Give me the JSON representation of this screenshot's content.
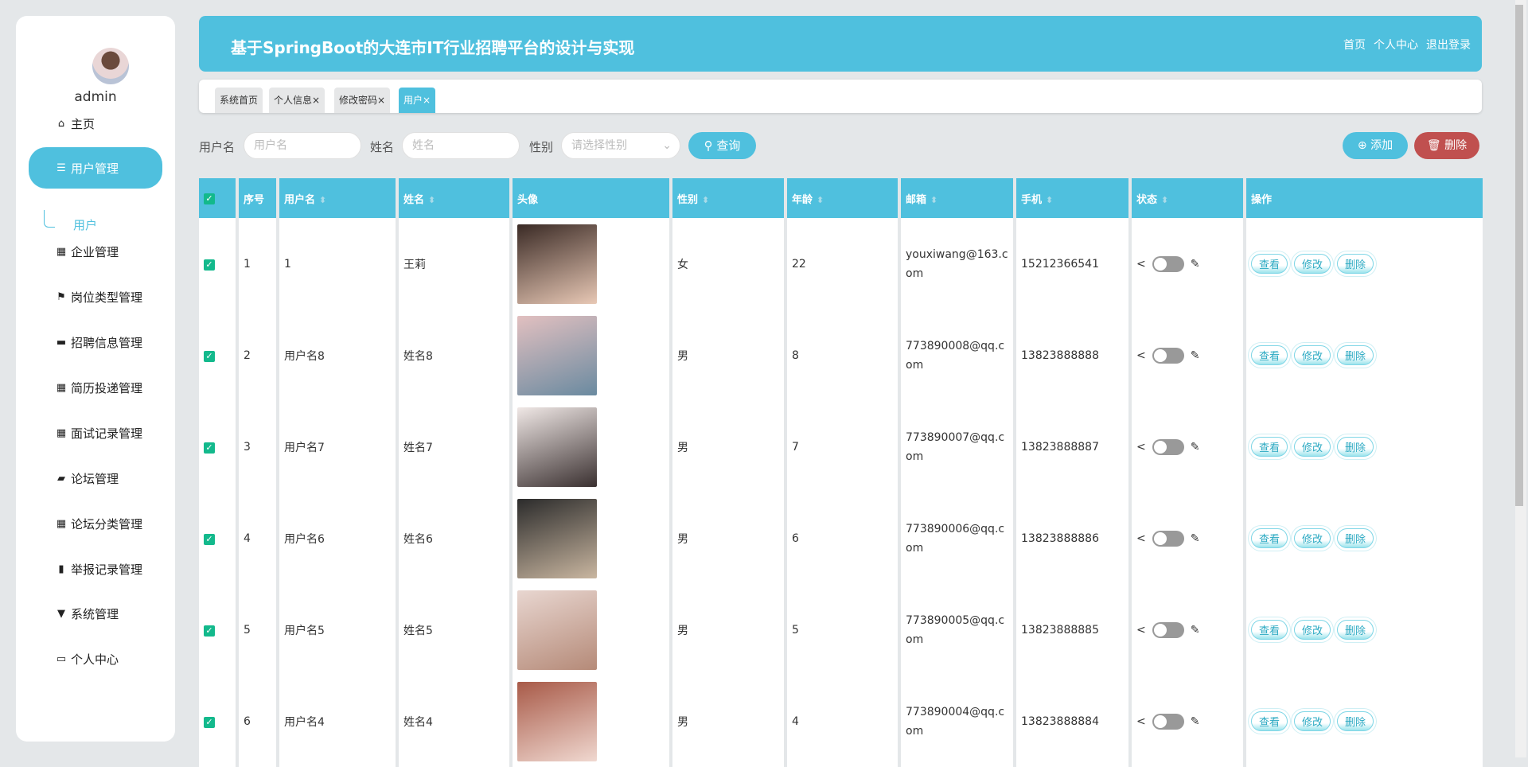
{
  "sidebar": {
    "username": "admin",
    "items": [
      {
        "label": "主页",
        "icon": "home-icon"
      },
      {
        "label": "用户管理",
        "icon": "list-icon"
      },
      {
        "label": "企业管理",
        "icon": "grid-icon"
      },
      {
        "label": "岗位类型管理",
        "icon": "flag-icon"
      },
      {
        "label": "招聘信息管理",
        "icon": "ticket-icon"
      },
      {
        "label": "简历投递管理",
        "icon": "grid-icon"
      },
      {
        "label": "面试记录管理",
        "icon": "grid-icon"
      },
      {
        "label": "论坛管理",
        "icon": "briefcase-icon"
      },
      {
        "label": "论坛分类管理",
        "icon": "grid-icon"
      },
      {
        "label": "举报记录管理",
        "icon": "book-icon"
      },
      {
        "label": "系统管理",
        "icon": "pin-icon"
      },
      {
        "label": "个人中心",
        "icon": "card-icon"
      }
    ],
    "subitem": "用户"
  },
  "header": {
    "title": "基于SpringBoot的大连市IT行业招聘平台的设计与实现",
    "links": [
      "首页",
      "个人中心",
      "退出登录"
    ]
  },
  "tabs": [
    {
      "label": "系统首页"
    },
    {
      "label": "个人信息×"
    },
    {
      "label": "修改密码×"
    },
    {
      "label": "用户×"
    }
  ],
  "search": {
    "username_label": "用户名",
    "username_placeholder": "用户名",
    "name_label": "姓名",
    "name_placeholder": "姓名",
    "gender_label": "性别",
    "gender_placeholder": "请选择性别",
    "query": "查询",
    "add": "添加",
    "delete": "删除"
  },
  "table": {
    "headers": [
      "序号",
      "用户名",
      "姓名",
      "头像",
      "性别",
      "年龄",
      "邮箱",
      "手机",
      "状态",
      "操作"
    ],
    "actions": [
      "查看",
      "修改",
      "删除"
    ],
    "rows": [
      {
        "no": "1",
        "username": "1",
        "name": "王莉",
        "gender": "女",
        "age": "22",
        "email": "youxiwang@163.com",
        "phone": "15212366541"
      },
      {
        "no": "2",
        "username": "用户名8",
        "name": "姓名8",
        "gender": "男",
        "age": "8",
        "email": "773890008@qq.com",
        "phone": "13823888888"
      },
      {
        "no": "3",
        "username": "用户名7",
        "name": "姓名7",
        "gender": "男",
        "age": "7",
        "email": "773890007@qq.com",
        "phone": "13823888887"
      },
      {
        "no": "4",
        "username": "用户名6",
        "name": "姓名6",
        "gender": "男",
        "age": "6",
        "email": "773890006@qq.com",
        "phone": "13823888886"
      },
      {
        "no": "5",
        "username": "用户名5",
        "name": "姓名5",
        "gender": "男",
        "age": "5",
        "email": "773890005@qq.com",
        "phone": "13823888885"
      },
      {
        "no": "6",
        "username": "用户名4",
        "name": "姓名4",
        "gender": "男",
        "age": "4",
        "email": "773890004@qq.com",
        "phone": "13823888884"
      }
    ]
  },
  "colors": {
    "accent": "#4fc0de",
    "danger": "#c0504f",
    "checkbox": "#13b98c"
  }
}
